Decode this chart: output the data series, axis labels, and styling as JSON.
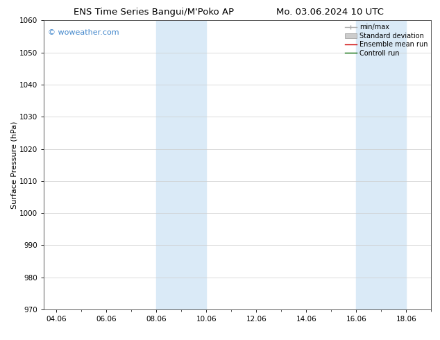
{
  "title_left": "ENS Time Series Bangui/M'Poko AP",
  "title_right": "Mo. 03.06.2024 10 UTC",
  "ylabel": "Surface Pressure (hPa)",
  "ylim": [
    970,
    1060
  ],
  "yticks": [
    970,
    980,
    990,
    1000,
    1010,
    1020,
    1030,
    1040,
    1050,
    1060
  ],
  "xlim_start": 3.5,
  "xlim_end": 19.0,
  "xtick_labels": [
    "04.06",
    "06.06",
    "08.06",
    "10.06",
    "12.06",
    "14.06",
    "16.06",
    "18.06"
  ],
  "xtick_positions": [
    4.0,
    6.0,
    8.0,
    10.0,
    12.0,
    14.0,
    16.0,
    18.0
  ],
  "shaded_bands": [
    {
      "x_start": 8.0,
      "x_end": 10.0
    },
    {
      "x_start": 16.0,
      "x_end": 18.0
    }
  ],
  "shaded_color": "#daeaf7",
  "watermark_text": "© woweather.com",
  "watermark_color": "#4488cc",
  "legend_entries": [
    {
      "label": "min/max",
      "color": "#aaaaaa",
      "linestyle": "-",
      "linewidth": 1.0
    },
    {
      "label": "Standard deviation",
      "color": "#cccccc",
      "linestyle": "-",
      "linewidth": 5
    },
    {
      "label": "Ensemble mean run",
      "color": "#cc0000",
      "linestyle": "-",
      "linewidth": 1.0
    },
    {
      "label": "Controll run",
      "color": "#006600",
      "linestyle": "-",
      "linewidth": 1.0
    }
  ],
  "background_color": "#ffffff",
  "grid_color": "#cccccc",
  "title_fontsize": 9.5,
  "ylabel_fontsize": 8,
  "tick_fontsize": 7.5,
  "legend_fontsize": 7,
  "watermark_fontsize": 8
}
